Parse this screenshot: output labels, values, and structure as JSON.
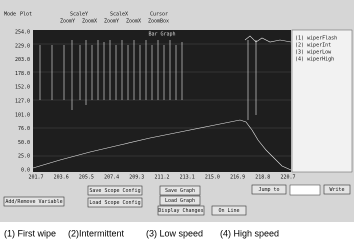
{
  "toolbar": {
    "items": [
      "Mode",
      "Plot",
      "ScaleY",
      "ScaleX",
      "Cursor"
    ],
    "sub_items": [
      "ZoomY",
      "ZoomX",
      "ZoomY",
      "ZoomX",
      "ZoomBox"
    ]
  },
  "plot": {
    "title": "Bar Graph",
    "y_labels": [
      "254.0",
      "229.0",
      "203.0",
      "178.0",
      "152.0",
      "127.0",
      "101.0",
      "76.0",
      "50.0",
      "25.0",
      "0.0"
    ],
    "x_labels": [
      "201.7",
      "203.6",
      "205.5",
      "207.4",
      "209.3",
      "211.2",
      "213.1",
      "215.0",
      "216.9",
      "218.8",
      "220.7"
    ]
  },
  "legend": [
    "(1) wiperFlash",
    "(2) wiperInt",
    "(3) wiperLow",
    "(4) wiperHigh"
  ],
  "buttons": {
    "add_remove": "Add/Remove Variable",
    "save_scope": "Save Scope Config",
    "load_scope": "Load Scope Config",
    "save_graph": "Save Graph",
    "load_graph": "Load Graph",
    "display": "Display Changes",
    "jump": "Jump to",
    "write": "Write",
    "online": "On Line"
  },
  "caption": [
    "(1) First wipe",
    "(2)Intermittent",
    "(3) Low speed",
    "(4) High speed"
  ]
}
